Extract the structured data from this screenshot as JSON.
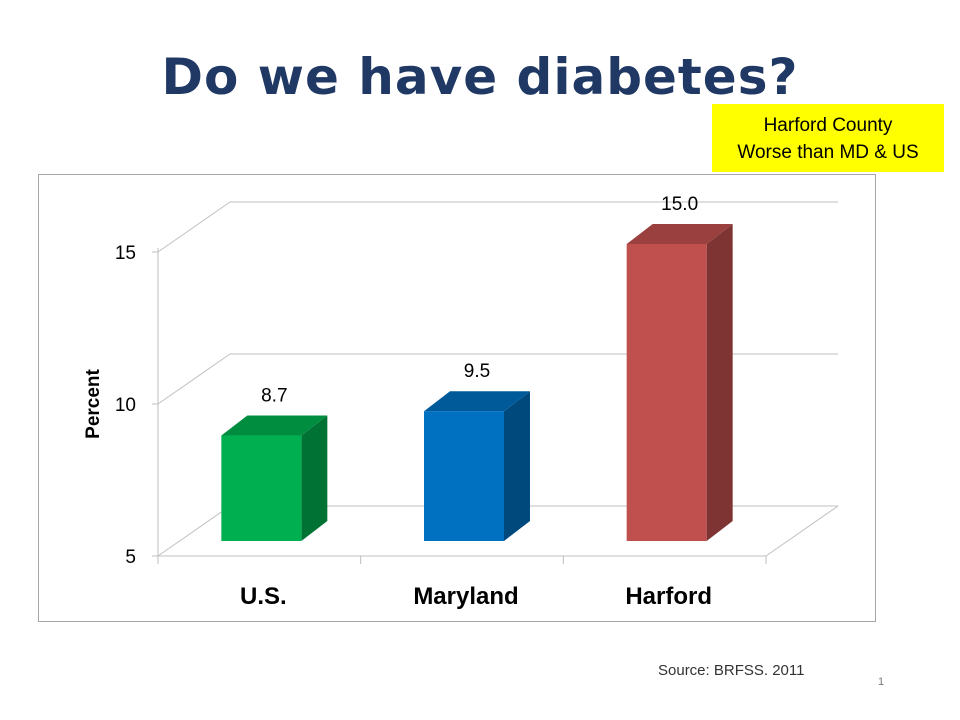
{
  "slide": {
    "title": "Do we have diabetes?",
    "callout_lines": [
      "Harford County",
      "Worse than MD & US"
    ],
    "callout_color": "#ffff00",
    "source": "Source: BRFSS. 2011",
    "page_number": "1"
  },
  "chart_data": {
    "type": "bar",
    "categories": [
      "U.S.",
      "Maryland",
      "Harford"
    ],
    "values": [
      8.7,
      9.5,
      15.0
    ],
    "value_labels": [
      "8.7",
      "9.5",
      "15.0"
    ],
    "colors": [
      "#00b050",
      "#0070c0",
      "#c0504d"
    ],
    "ylabel": "Percent",
    "ylim": [
      5,
      15
    ],
    "yticks": [
      "5",
      "10",
      "15"
    ],
    "grid": true,
    "three_d": true
  }
}
